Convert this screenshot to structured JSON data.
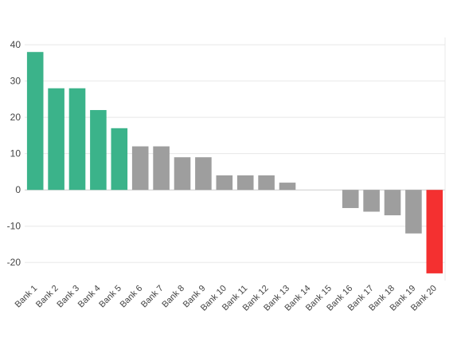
{
  "chart_data": {
    "type": "bar",
    "title": "",
    "xlabel": "",
    "ylabel": "",
    "categories": [
      "Bank 1",
      "Bank 2",
      "Bank 3",
      "Bank 4",
      "Bank 5",
      "Bank 6",
      "Bank 7",
      "Bank 8",
      "Bank 9",
      "Bank 10",
      "Bank 11",
      "Bank 12",
      "Bank 13",
      "Bank 14",
      "Bank 15",
      "Bank 16",
      "Bank 17",
      "Bank 18",
      "Bank 19",
      "Bank 20"
    ],
    "values": [
      38,
      28,
      28,
      22,
      17,
      12,
      12,
      9,
      9,
      4,
      4,
      4,
      2,
      0,
      0,
      -5,
      -6,
      -7,
      -12,
      -23
    ],
    "bar_colors": [
      "#3bb38a",
      "#3bb38a",
      "#3bb38a",
      "#3bb38a",
      "#3bb38a",
      "#9e9e9e",
      "#9e9e9e",
      "#9e9e9e",
      "#9e9e9e",
      "#9e9e9e",
      "#9e9e9e",
      "#9e9e9e",
      "#9e9e9e",
      "#9e9e9e",
      "#9e9e9e",
      "#9e9e9e",
      "#9e9e9e",
      "#9e9e9e",
      "#9e9e9e",
      "#f43030"
    ],
    "ylim": [
      -25,
      42
    ],
    "yticks": [
      40,
      30,
      20,
      10,
      0,
      -10,
      -20
    ],
    "grid": true
  }
}
